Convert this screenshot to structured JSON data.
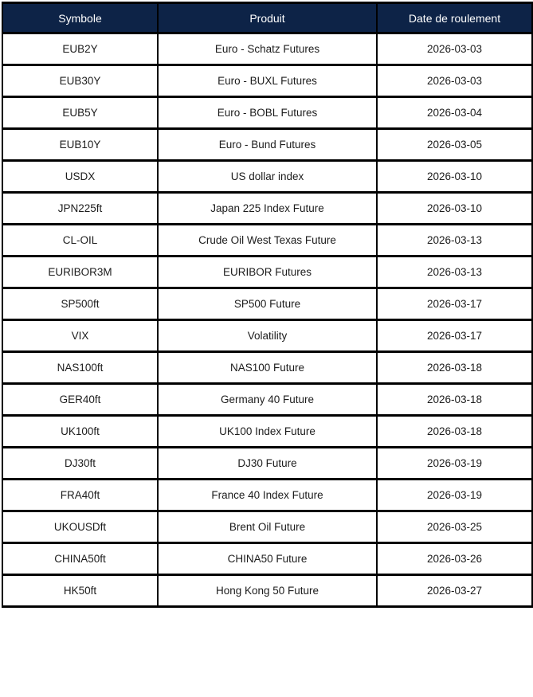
{
  "colors": {
    "header_bg": "#0d2347",
    "header_text": "#ffffff",
    "grid_border": "#000000",
    "row_bg": "#ffffff",
    "cell_text": "#1c1c1c"
  },
  "table": {
    "columns": [
      "Symbole",
      "Produit",
      "Date de roulement"
    ],
    "rows": [
      {
        "symbole": "EUB2Y",
        "produit": "Euro - Schatz Futures",
        "date_de_roulement": "2026-03-03"
      },
      {
        "symbole": "EUB30Y",
        "produit": "Euro - BUXL Futures",
        "date_de_roulement": "2026-03-03"
      },
      {
        "symbole": "EUB5Y",
        "produit": "Euro - BOBL Futures",
        "date_de_roulement": "2026-03-04"
      },
      {
        "symbole": "EUB10Y",
        "produit": "Euro - Bund Futures",
        "date_de_roulement": "2026-03-05"
      },
      {
        "symbole": "USDX",
        "produit": "US dollar index",
        "date_de_roulement": "2026-03-10"
      },
      {
        "symbole": "JPN225ft",
        "produit": "Japan 225 Index Future",
        "date_de_roulement": "2026-03-10"
      },
      {
        "symbole": "CL-OIL",
        "produit": "Crude Oil West Texas Future",
        "date_de_roulement": "2026-03-13"
      },
      {
        "symbole": "EURIBOR3M",
        "produit": "EURIBOR Futures",
        "date_de_roulement": "2026-03-13"
      },
      {
        "symbole": "SP500ft",
        "produit": "SP500 Future",
        "date_de_roulement": "2026-03-17"
      },
      {
        "symbole": "VIX",
        "produit": "Volatility",
        "date_de_roulement": "2026-03-17"
      },
      {
        "symbole": "NAS100ft",
        "produit": "NAS100 Future",
        "date_de_roulement": "2026-03-18"
      },
      {
        "symbole": "GER40ft",
        "produit": "Germany 40 Future",
        "date_de_roulement": "2026-03-18"
      },
      {
        "symbole": "UK100ft",
        "produit": "UK100 Index Future",
        "date_de_roulement": "2026-03-18"
      },
      {
        "symbole": "DJ30ft",
        "produit": "DJ30 Future",
        "date_de_roulement": "2026-03-19"
      },
      {
        "symbole": "FRA40ft",
        "produit": "France 40 Index Future",
        "date_de_roulement": "2026-03-19"
      },
      {
        "symbole": "UKOUSDft",
        "produit": "Brent Oil Future",
        "date_de_roulement": "2026-03-25"
      },
      {
        "symbole": "CHINA50ft",
        "produit": "CHINA50 Future",
        "date_de_roulement": "2026-03-26"
      },
      {
        "symbole": "HK50ft",
        "produit": "Hong Kong 50 Future",
        "date_de_roulement": "2026-03-27"
      }
    ]
  },
  "chart_data": {
    "type": "table",
    "title": "",
    "columns": [
      "Symbole",
      "Produit",
      "Date de roulement"
    ],
    "rows": [
      [
        "EUB2Y",
        "Euro - Schatz Futures",
        "2026-03-03"
      ],
      [
        "EUB30Y",
        "Euro - BUXL Futures",
        "2026-03-03"
      ],
      [
        "EUB5Y",
        "Euro - BOBL Futures",
        "2026-03-04"
      ],
      [
        "EUB10Y",
        "Euro - Bund Futures",
        "2026-03-05"
      ],
      [
        "USDX",
        "US dollar index",
        "2026-03-10"
      ],
      [
        "JPN225ft",
        "Japan 225 Index Future",
        "2026-03-10"
      ],
      [
        "CL-OIL",
        "Crude Oil West Texas Future",
        "2026-03-13"
      ],
      [
        "EURIBOR3M",
        "EURIBOR Futures",
        "2026-03-13"
      ],
      [
        "SP500ft",
        "SP500 Future",
        "2026-03-17"
      ],
      [
        "VIX",
        "Volatility",
        "2026-03-17"
      ],
      [
        "NAS100ft",
        "NAS100 Future",
        "2026-03-18"
      ],
      [
        "GER40ft",
        "Germany 40 Future",
        "2026-03-18"
      ],
      [
        "UK100ft",
        "UK100 Index Future",
        "2026-03-18"
      ],
      [
        "DJ30ft",
        "DJ30 Future",
        "2026-03-19"
      ],
      [
        "FRA40ft",
        "France 40 Index Future",
        "2026-03-19"
      ],
      [
        "UKOUSDft",
        "Brent Oil Future",
        "2026-03-25"
      ],
      [
        "CHINA50ft",
        "CHINA50 Future",
        "2026-03-26"
      ],
      [
        "HK50ft",
        "Hong Kong 50 Future",
        "2026-03-27"
      ]
    ]
  }
}
